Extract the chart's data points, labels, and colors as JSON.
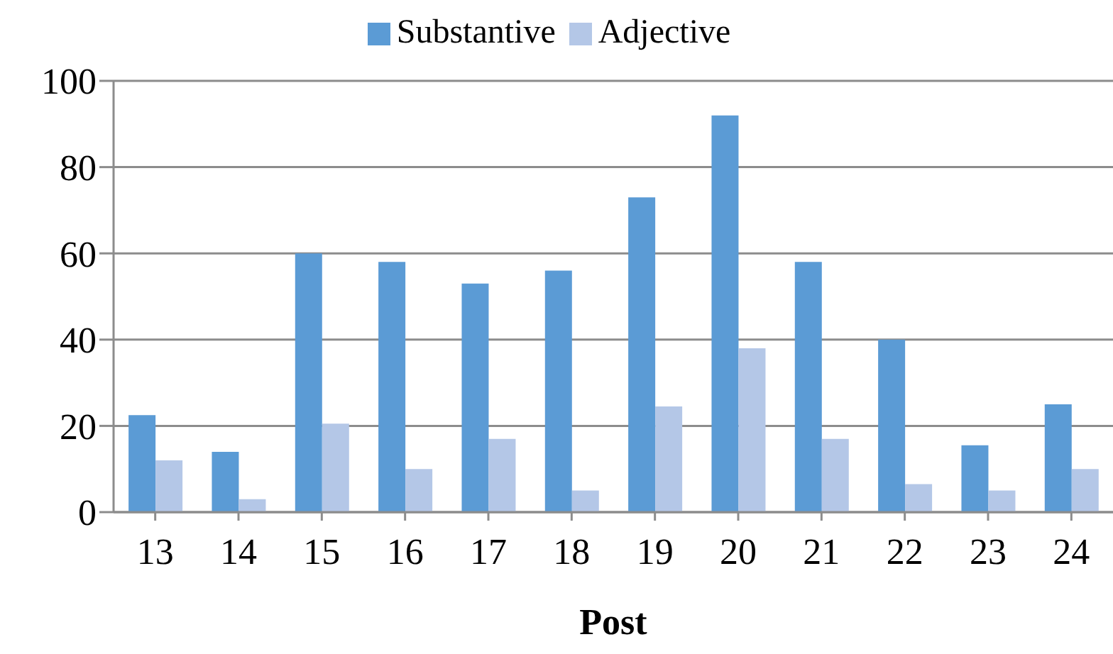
{
  "chart_data": {
    "type": "bar",
    "xlabel": "Post",
    "categories": [
      "13",
      "14",
      "15",
      "16",
      "17",
      "18",
      "19",
      "20",
      "21",
      "22",
      "23",
      "24"
    ],
    "series": [
      {
        "name": "Substantive",
        "color": "#5b9bd5",
        "values": [
          22.5,
          14,
          60,
          58,
          53,
          56,
          73,
          92,
          58,
          40,
          15.5,
          25
        ]
      },
      {
        "name": "Adjective",
        "color": "#b4c7e7",
        "values": [
          12,
          3,
          20.5,
          10,
          17,
          5,
          24.5,
          38,
          17,
          6.5,
          5,
          10
        ]
      }
    ],
    "ylim": [
      0,
      100
    ],
    "yticks": [
      0,
      20,
      40,
      60,
      80,
      100
    ],
    "grid": "y",
    "legend": "top"
  }
}
